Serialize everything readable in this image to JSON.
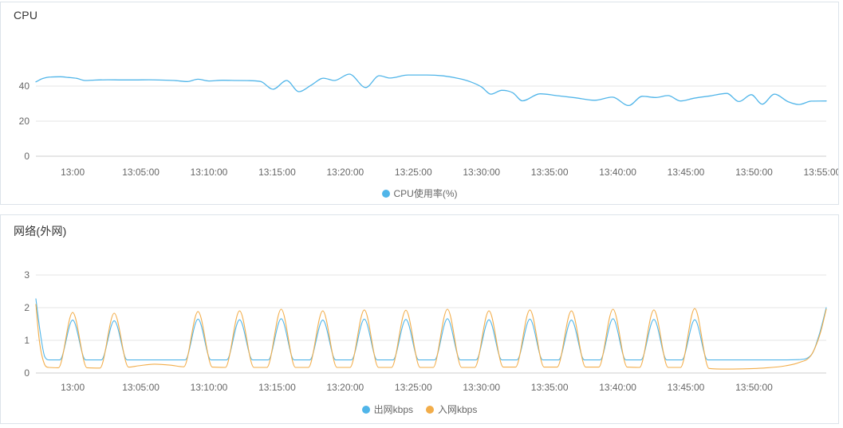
{
  "colors": {
    "cpu_line": "#50b5e9",
    "out_line": "#50b5e9",
    "in_line": "#f2ad4a",
    "grid": "#e6e6e6",
    "zero_axis": "#cccccc",
    "tick_text": "#666666",
    "title_text": "#333333",
    "card_border": "#dce3ea"
  },
  "cpu_panel": {
    "title": "CPU",
    "legend": [
      {
        "label": "CPU使用率(%)",
        "color": "#50b5e9"
      }
    ],
    "chart_data": {
      "type": "line",
      "title": "CPU",
      "xlabel": "",
      "ylabel": "",
      "x_axis": {
        "unit": "minutes relative to 13:00",
        "range": [
          -2.7,
          55.3
        ],
        "tick_t": [
          0,
          5,
          10,
          15,
          20,
          25,
          30,
          35,
          40,
          45,
          50,
          55
        ],
        "tick_labels": [
          "13:00",
          "13:05:00",
          "13:10:00",
          "13:15:00",
          "13:20:00",
          "13:25:00",
          "13:30:00",
          "13:35:00",
          "13:40:00",
          "13:45:00",
          "13:50:00",
          "13:55:00"
        ]
      },
      "y_axis": {
        "ticks": [
          0,
          20,
          40
        ],
        "tick_labels": [
          "0",
          "20",
          "40"
        ],
        "ylim": [
          0,
          60
        ]
      },
      "grid": true,
      "legend_position": "bottom",
      "series": [
        {
          "name": "CPU使用率(%)",
          "color": "#50b5e9",
          "points": [
            [
              -2.7,
              42.4
            ],
            [
              -2.2,
              44.3
            ],
            [
              -1.6,
              45.2
            ],
            [
              -0.9,
              45.3
            ],
            [
              -0.3,
              44.9
            ],
            [
              0.3,
              44.4
            ],
            [
              0.9,
              43.2
            ],
            [
              1.6,
              43.4
            ],
            [
              2.6,
              43.6
            ],
            [
              3.6,
              43.5
            ],
            [
              4.6,
              43.5
            ],
            [
              5.6,
              43.6
            ],
            [
              6.6,
              43.4
            ],
            [
              7.6,
              43.1
            ],
            [
              8.4,
              42.6
            ],
            [
              9.2,
              43.9
            ],
            [
              10,
              42.9
            ],
            [
              11,
              43.3
            ],
            [
              12,
              43.2
            ],
            [
              13,
              43.1
            ],
            [
              13.8,
              42.6
            ],
            [
              14.7,
              38.2
            ],
            [
              15.7,
              43.2
            ],
            [
              16.6,
              36.8
            ],
            [
              17.5,
              40.5
            ],
            [
              18.4,
              44.5
            ],
            [
              19.2,
              43.2
            ],
            [
              20.3,
              46.8
            ],
            [
              21.5,
              39.2
            ],
            [
              22.5,
              45.9
            ],
            [
              23.3,
              44.6
            ],
            [
              24.6,
              46.3
            ],
            [
              26,
              46.3
            ],
            [
              27.2,
              45.8
            ],
            [
              28.4,
              44.2
            ],
            [
              29.2,
              42.4
            ],
            [
              30,
              39.5
            ],
            [
              30.7,
              35.4
            ],
            [
              31.5,
              37.6
            ],
            [
              32.3,
              36.2
            ],
            [
              33,
              31.6
            ],
            [
              34.3,
              35.6
            ],
            [
              35.6,
              34.5
            ],
            [
              36.9,
              33.3
            ],
            [
              38.3,
              31.9
            ],
            [
              39.6,
              33.7
            ],
            [
              40.8,
              28.9
            ],
            [
              41.8,
              34.2
            ],
            [
              42.8,
              33.5
            ],
            [
              43.7,
              34.6
            ],
            [
              44.6,
              31.5
            ],
            [
              45.6,
              33.1
            ],
            [
              46.8,
              34.4
            ],
            [
              48,
              35.8
            ],
            [
              48.9,
              31.2
            ],
            [
              49.8,
              35.1
            ],
            [
              50.6,
              29.7
            ],
            [
              51.5,
              35.4
            ],
            [
              52.5,
              31.1
            ],
            [
              53.3,
              29.5
            ],
            [
              54.2,
              31.4
            ],
            [
              55.3,
              31.5
            ]
          ]
        }
      ]
    }
  },
  "network_panel": {
    "title": "网络(外网)",
    "legend": [
      {
        "label": "出网kbps",
        "color": "#50b5e9"
      },
      {
        "label": "入网kbps",
        "color": "#f2ad4a"
      }
    ],
    "chart_data": {
      "type": "line",
      "title": "网络(外网)",
      "xlabel": "",
      "ylabel": "",
      "x_axis": {
        "unit": "minutes relative to 13:00",
        "range": [
          -2.7,
          55.3
        ],
        "tick_t": [
          0,
          5,
          10,
          15,
          20,
          25,
          30,
          35,
          40,
          45,
          50
        ],
        "tick_labels": [
          "13:00",
          "13:05:00",
          "13:10:00",
          "13:15:00",
          "13:20:00",
          "13:25:00",
          "13:30:00",
          "13:35:00",
          "13:40:00",
          "13:45:00",
          "13:50:00"
        ]
      },
      "y_axis": {
        "ticks": [
          0,
          1,
          2,
          3
        ],
        "tick_labels": [
          "0",
          "1",
          "2",
          "3"
        ],
        "ylim": [
          0,
          3.2
        ]
      },
      "grid": true,
      "legend_position": "bottom",
      "series": [
        {
          "name": "出网kbps",
          "color": "#50b5e9",
          "points": [
            [
              -2.7,
              2.27
            ],
            [
              -2.4,
              1.3
            ],
            [
              -2.05,
              0.5
            ],
            [
              -1.7,
              0.4
            ],
            [
              -0.95,
              0.4
            ],
            [
              0,
              1.62
            ],
            [
              0.95,
              0.4
            ],
            [
              2.1,
              0.4
            ],
            [
              3.05,
              1.6
            ],
            [
              4,
              0.4
            ],
            [
              5.5,
              0.4
            ],
            [
              7,
              0.4
            ],
            [
              8.25,
              0.4
            ],
            [
              9.2,
              1.65
            ],
            [
              10.15,
              0.4
            ],
            [
              11.3,
              0.4
            ],
            [
              12.25,
              1.63
            ],
            [
              13.2,
              0.4
            ],
            [
              14.35,
              0.4
            ],
            [
              15.3,
              1.66
            ],
            [
              16.25,
              0.4
            ],
            [
              17.4,
              0.4
            ],
            [
              18.35,
              1.62
            ],
            [
              19.3,
              0.4
            ],
            [
              20.45,
              0.4
            ],
            [
              21.4,
              1.65
            ],
            [
              22.35,
              0.4
            ],
            [
              23.5,
              0.4
            ],
            [
              24.45,
              1.64
            ],
            [
              25.4,
              0.4
            ],
            [
              26.55,
              0.4
            ],
            [
              27.5,
              1.66
            ],
            [
              28.45,
              0.4
            ],
            [
              29.6,
              0.4
            ],
            [
              30.55,
              1.63
            ],
            [
              31.5,
              0.4
            ],
            [
              32.6,
              0.4
            ],
            [
              33.55,
              1.65
            ],
            [
              34.5,
              0.4
            ],
            [
              35.65,
              0.4
            ],
            [
              36.6,
              1.62
            ],
            [
              37.55,
              0.4
            ],
            [
              38.7,
              0.4
            ],
            [
              39.65,
              1.66
            ],
            [
              40.6,
              0.4
            ],
            [
              41.7,
              0.4
            ],
            [
              42.65,
              1.64
            ],
            [
              43.6,
              0.4
            ],
            [
              44.7,
              0.4
            ],
            [
              45.65,
              1.63
            ],
            [
              46.6,
              0.4
            ],
            [
              48,
              0.4
            ],
            [
              50,
              0.4
            ],
            [
              52,
              0.4
            ],
            [
              53.3,
              0.41
            ],
            [
              54.2,
              0.55
            ],
            [
              54.8,
              1.2
            ],
            [
              55.3,
              2.0
            ]
          ]
        },
        {
          "name": "入网kbps",
          "color": "#f2ad4a",
          "points": [
            [
              -2.7,
              2.1
            ],
            [
              -2.45,
              1.0
            ],
            [
              -2.1,
              0.3
            ],
            [
              -1.75,
              0.17
            ],
            [
              -1.05,
              0.16
            ],
            [
              0,
              1.85
            ],
            [
              1.05,
              0.16
            ],
            [
              2.0,
              0.15
            ],
            [
              3.05,
              1.83
            ],
            [
              4.1,
              0.18
            ],
            [
              4.8,
              0.22
            ],
            [
              6,
              0.27
            ],
            [
              7.2,
              0.24
            ],
            [
              8.15,
              0.19
            ],
            [
              9.2,
              1.88
            ],
            [
              10.25,
              0.18
            ],
            [
              11.2,
              0.17
            ],
            [
              12.25,
              1.9
            ],
            [
              13.3,
              0.17
            ],
            [
              14.25,
              0.17
            ],
            [
              15.3,
              1.95
            ],
            [
              16.35,
              0.17
            ],
            [
              17.3,
              0.17
            ],
            [
              18.35,
              1.9
            ],
            [
              19.4,
              0.17
            ],
            [
              20.35,
              0.17
            ],
            [
              21.4,
              1.93
            ],
            [
              22.45,
              0.17
            ],
            [
              23.4,
              0.17
            ],
            [
              24.45,
              1.92
            ],
            [
              25.5,
              0.17
            ],
            [
              26.45,
              0.17
            ],
            [
              27.5,
              1.95
            ],
            [
              28.55,
              0.17
            ],
            [
              29.5,
              0.17
            ],
            [
              30.55,
              1.9
            ],
            [
              31.6,
              0.18
            ],
            [
              32.5,
              0.18
            ],
            [
              33.55,
              1.93
            ],
            [
              34.6,
              0.18
            ],
            [
              35.55,
              0.18
            ],
            [
              36.6,
              1.9
            ],
            [
              37.65,
              0.18
            ],
            [
              38.6,
              0.18
            ],
            [
              39.65,
              1.95
            ],
            [
              40.7,
              0.18
            ],
            [
              41.6,
              0.17
            ],
            [
              42.65,
              1.93
            ],
            [
              43.7,
              0.17
            ],
            [
              44.6,
              0.17
            ],
            [
              45.65,
              1.97
            ],
            [
              46.7,
              0.14
            ],
            [
              48,
              0.12
            ],
            [
              49.5,
              0.13
            ],
            [
              51,
              0.16
            ],
            [
              52.3,
              0.22
            ],
            [
              53.3,
              0.32
            ],
            [
              54.2,
              0.55
            ],
            [
              54.85,
              1.2
            ],
            [
              55.3,
              1.95
            ]
          ]
        }
      ]
    }
  }
}
